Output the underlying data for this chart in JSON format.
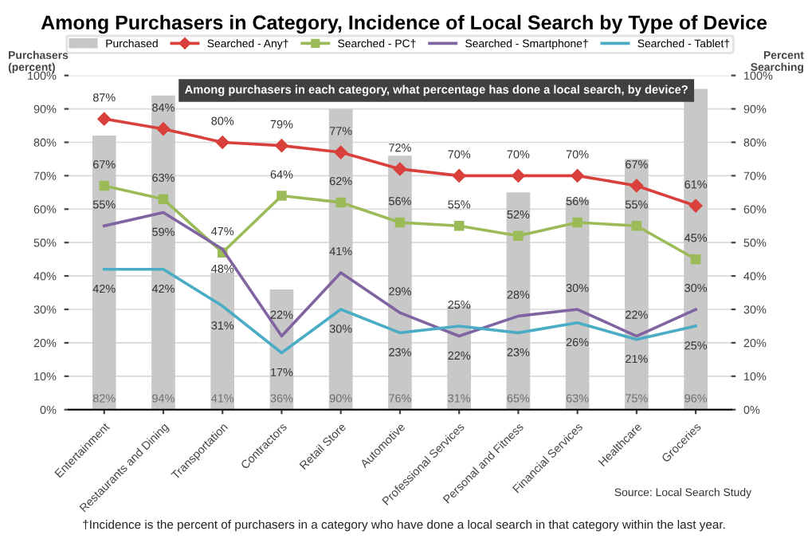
{
  "chart_data": {
    "type": "bar",
    "title": "Among Purchasers in Category, Incidence of Local Search by Type of Device",
    "ylabel": "Purchasers\n(percent)",
    "y2label": "Percent\nSearching",
    "categories": [
      "Entertainment",
      "Restaurants and Dining",
      "Transportation",
      "Contractors",
      "Retail Store",
      "Automotive",
      "Professional Services",
      "Personal and Fitness",
      "Financial Services",
      "Healthcare",
      "Groceries"
    ],
    "series": [
      {
        "name": "Purchased",
        "color": "#c8c8c8",
        "values": [
          82,
          94,
          41,
          36,
          90,
          76,
          31,
          65,
          63,
          75,
          96
        ],
        "value_labels": [
          "82%",
          "94%",
          "41%",
          "36%",
          "90%",
          "76%",
          "31%",
          "65%",
          "63%",
          "75%",
          "96%"
        ]
      },
      {
        "name": "Searched - Any†",
        "type": "line",
        "marker": "diamond",
        "color": "#d9403b",
        "values": [
          87,
          84,
          80,
          79,
          77,
          72,
          70,
          70,
          70,
          67,
          61
        ],
        "value_labels": [
          "87%",
          "84%",
          "80%",
          "79%",
          "77%",
          "72%",
          "70%",
          "70%",
          "70%",
          "67%",
          "61%"
        ]
      },
      {
        "name": "Searched - PC†",
        "type": "line",
        "marker": "square",
        "color": "#9bbb59",
        "values": [
          67,
          63,
          47,
          64,
          62,
          56,
          55,
          52,
          56,
          55,
          45
        ],
        "value_labels": [
          "67%",
          "63%",
          "47%",
          "64%",
          "62%",
          "56%",
          "55%",
          "52%",
          "56%",
          "55%",
          "45%"
        ]
      },
      {
        "name": "Searched - Smartphone†",
        "type": "line",
        "marker": "none",
        "color": "#8064a2",
        "values": [
          55,
          59,
          48,
          22,
          41,
          29,
          22,
          28,
          30,
          22,
          30
        ],
        "value_labels": [
          "55%",
          "59%",
          "48%",
          "22%",
          "41%",
          "29%",
          "22%",
          "28%",
          "30%",
          "22%",
          "30%"
        ]
      },
      {
        "name": "Searched - Tablet†",
        "type": "line",
        "marker": "none",
        "color": "#4bacc6",
        "values": [
          42,
          42,
          31,
          17,
          30,
          23,
          25,
          23,
          26,
          21,
          25
        ],
        "value_labels": [
          "42%",
          "42%",
          "31%",
          "17%",
          "30%",
          "23%",
          "25%",
          "23%",
          "26%",
          "21%",
          "25%"
        ]
      }
    ],
    "ylim": [
      0,
      100
    ],
    "yticks": [
      {
        "value": 0,
        "label": "0%"
      },
      {
        "value": 10,
        "label": "10%"
      },
      {
        "value": 20,
        "label": "20%"
      },
      {
        "value": 30,
        "label": "30%"
      },
      {
        "value": 40,
        "label": "40%"
      },
      {
        "value": 50,
        "label": "50%"
      },
      {
        "value": 60,
        "label": "60%"
      },
      {
        "value": 70,
        "label": "70%"
      },
      {
        "value": 80,
        "label": "80%"
      },
      {
        "value": 90,
        "label": "90%"
      },
      {
        "value": 100,
        "label": "100%"
      }
    ],
    "y2lim": [
      0,
      100
    ],
    "y2ticks": [
      {
        "value": 0,
        "label": "0%"
      },
      {
        "value": 10,
        "label": "10%"
      },
      {
        "value": 20,
        "label": "20%"
      },
      {
        "value": 30,
        "label": "30%"
      },
      {
        "value": 40,
        "label": "40%"
      },
      {
        "value": 50,
        "label": "50%"
      },
      {
        "value": 60,
        "label": "60%"
      },
      {
        "value": 70,
        "label": "70%"
      },
      {
        "value": 80,
        "label": "80%"
      },
      {
        "value": 90,
        "label": "90%"
      },
      {
        "value": 100,
        "label": "100%"
      }
    ],
    "grid": "y",
    "legend": "top",
    "annotations": [
      "Among purchasers in each category, what percentage has done a local search, by device?",
      "Source: Local Search Study",
      "†Incidence is the percent of purchasers in a category who have done a local search in that category within the last year."
    ]
  }
}
